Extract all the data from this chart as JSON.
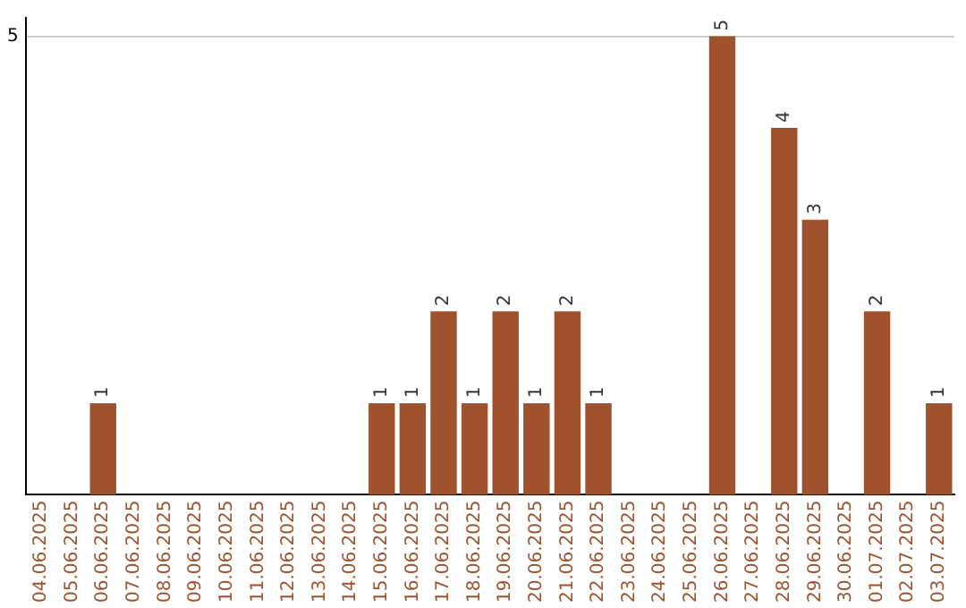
{
  "chart_data": {
    "type": "bar",
    "categories": [
      "04.06.2025",
      "05.06.2025",
      "06.06.2025",
      "07.06.2025",
      "08.06.2025",
      "09.06.2025",
      "10.06.2025",
      "11.06.2025",
      "12.06.2025",
      "13.06.2025",
      "14.06.2025",
      "15.06.2025",
      "16.06.2025",
      "17.06.2025",
      "18.06.2025",
      "19.06.2025",
      "20.06.2025",
      "21.06.2025",
      "22.06.2025",
      "23.06.2025",
      "24.06.2025",
      "25.06.2025",
      "26.06.2025",
      "27.06.2025",
      "28.06.2025",
      "29.06.2025",
      "30.06.2025",
      "01.07.2025",
      "02.07.2025",
      "03.07.2025"
    ],
    "values": [
      0,
      0,
      1,
      0,
      0,
      0,
      0,
      0,
      0,
      0,
      0,
      1,
      1,
      2,
      1,
      2,
      1,
      2,
      1,
      0,
      0,
      0,
      5,
      0,
      4,
      3,
      0,
      2,
      0,
      1
    ],
    "value_labels": [
      null,
      null,
      "1",
      null,
      null,
      null,
      null,
      null,
      null,
      null,
      null,
      "1",
      "1",
      "2",
      "1",
      "2",
      "1",
      "2",
      "1",
      null,
      null,
      null,
      "5",
      null,
      "4",
      "3",
      null,
      "2",
      null,
      "1"
    ],
    "color": "#a0522d",
    "ylim": [
      0,
      5.2
    ],
    "yticks": [
      5
    ],
    "grid": "y"
  }
}
